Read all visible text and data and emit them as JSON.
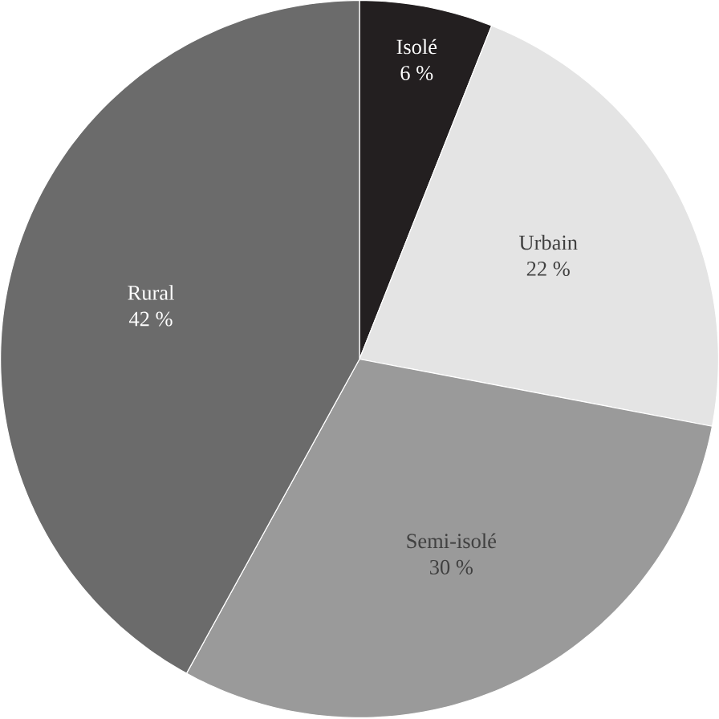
{
  "chart_data": {
    "type": "pie",
    "categories": [
      "Isolé",
      "Urbain",
      "Semi-isolé",
      "Rural"
    ],
    "values": [
      6,
      22,
      30,
      42
    ],
    "value_labels": [
      "6 %",
      "22 %",
      "30 %",
      "42 %"
    ],
    "colors": [
      "#231f20",
      "#e4e4e4",
      "#9a9a9a",
      "#6b6b6b"
    ]
  }
}
